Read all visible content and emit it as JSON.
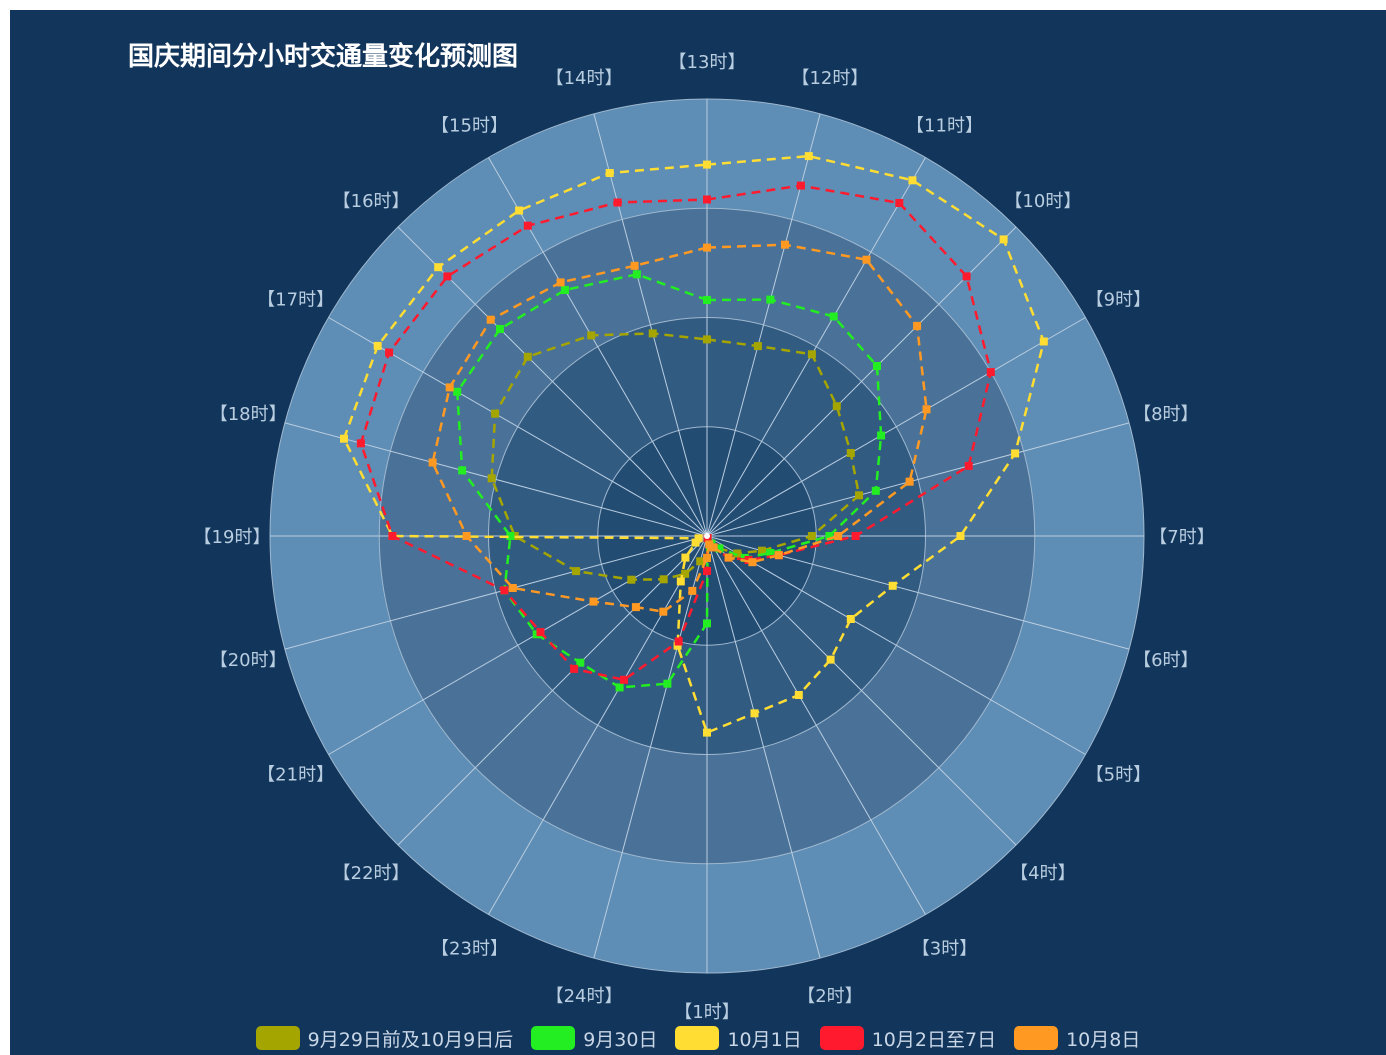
{
  "title": "国庆期间分小时交通量变化预测图",
  "chart_data": {
    "type": "radar",
    "title": "国庆期间分小时交通量变化预测图",
    "indicators": [
      "【13时】",
      "【12时】",
      "【11时】",
      "【10时】",
      "【9时】",
      "【8时】",
      "【7时】",
      "【6时】",
      "【5时】",
      "【4时】",
      "【3时】",
      "【2时】",
      "【1时】",
      "【24时】",
      "【23时】",
      "【22时】",
      "【21时】",
      "【20时】",
      "【19时】",
      "【18时】",
      "【17时】",
      "【16时】",
      "【15时】",
      "【14时】"
    ],
    "radial_max": 100,
    "split_number": 4,
    "series": [
      {
        "name": "9月29日前及10月9日后",
        "color": "#a5a500",
        "values": [
          45,
          45,
          48,
          42,
          38,
          36,
          24,
          13,
          8,
          4,
          2,
          0.5,
          5,
          6,
          10,
          14,
          20,
          31,
          44,
          51,
          56,
          58,
          53,
          48
        ]
      },
      {
        "name": "9月30日",
        "color": "#22ee22",
        "values": [
          54,
          56,
          58,
          55,
          46,
          40,
          28,
          15,
          10,
          4,
          2,
          0.5,
          20,
          35,
          40,
          41,
          45,
          48,
          45,
          58,
          66,
          67,
          65,
          62
        ]
      },
      {
        "name": "10月1日",
        "color": "#ffdd33",
        "values": [
          85,
          90,
          94,
          96,
          89,
          73,
          58,
          44,
          38,
          40,
          42,
          42,
          45,
          26,
          12,
          7,
          3,
          2,
          72,
          86,
          87,
          87,
          86,
          86
        ]
      },
      {
        "name": "10月2日至7日",
        "color": "#ff1a2e",
        "values": [
          77,
          83,
          88,
          84,
          75,
          62,
          34,
          17,
          11,
          7,
          3,
          0.5,
          8,
          25,
          38,
          43,
          44,
          48,
          72,
          82,
          84,
          84,
          82,
          79
        ]
      },
      {
        "name": "10月8日",
        "color": "#ff9922",
        "values": [
          66,
          69,
          73,
          68,
          58,
          48,
          30,
          17,
          12,
          7,
          3,
          2,
          5,
          13,
          20,
          23,
          30,
          46,
          55,
          65,
          68,
          70,
          67,
          64
        ]
      }
    ],
    "legend_position": "bottom"
  }
}
